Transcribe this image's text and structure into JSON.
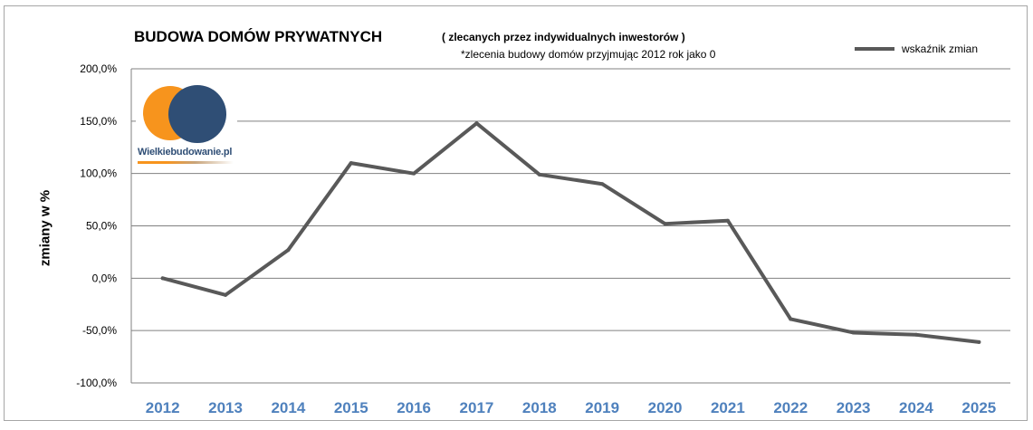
{
  "chart_data": {
    "type": "line",
    "title": "BUDOWA DOMÓW PRYWATNYCH",
    "subtitle": "( zlecanych  przez indywidualnych  inwestorów )",
    "note": "*zlecenia budowy domów przyjmując 2012 rok jako 0",
    "ylabel": "zmiany w %",
    "xlabel": "",
    "categories": [
      "2012",
      "2013",
      "2014",
      "2015",
      "2016",
      "2017",
      "2018",
      "2019",
      "2020",
      "2021",
      "2022",
      "2023",
      "2024",
      "2025"
    ],
    "series": [
      {
        "name": "wskaźnik  zmian",
        "values": [
          0,
          -16,
          27,
          110,
          100,
          148,
          99,
          90,
          52,
          55,
          -39,
          -52,
          -54,
          -61
        ],
        "color": "#595959"
      }
    ],
    "ylim": [
      -100,
      200
    ],
    "yticks": [
      200,
      150,
      100,
      50,
      0,
      -50,
      -100
    ],
    "ytick_labels": [
      "200,0%",
      "150,0%",
      "100,0%",
      "50,0%",
      "0,0%",
      "-50,0%",
      "-100,0%"
    ],
    "grid": true,
    "legend_position": "top-right",
    "xtick_color": "#4f81bd",
    "gridline_color": "#808080"
  },
  "logo": {
    "text": "Wielkiebudowanie.pl",
    "colors": {
      "orange": "#f7941d",
      "blue": "#2f4e75"
    }
  }
}
